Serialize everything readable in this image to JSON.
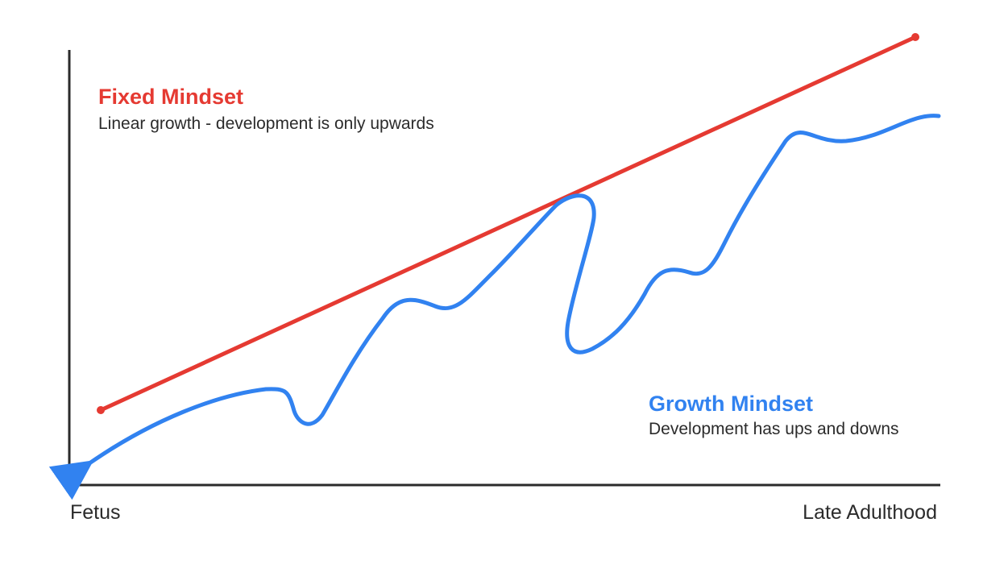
{
  "fixed": {
    "title": "Fixed Mindset",
    "description": "Linear growth - development is only upwards",
    "color": "#e53a32"
  },
  "growth": {
    "title": "Growth Mindset",
    "description": "Development has ups and downs",
    "color": "#3182f0"
  },
  "axis": {
    "x_start_label": "Fetus",
    "x_end_label": "Late Adulthood",
    "color": "#2b2b2b"
  }
}
